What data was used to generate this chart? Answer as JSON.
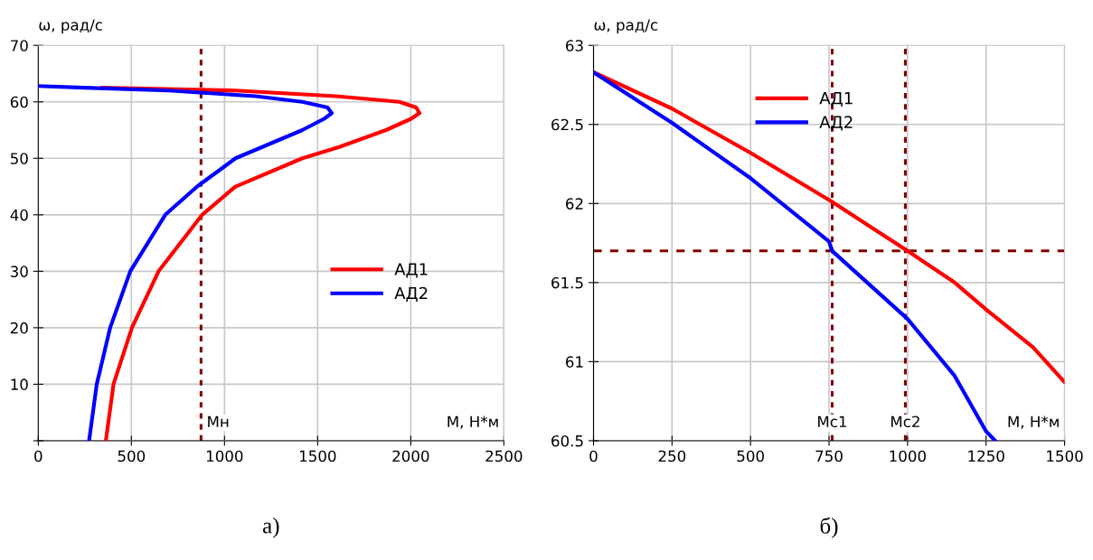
{
  "chart_data": [
    {
      "type": "line",
      "xlabel": "М, Н*м",
      "ylabel": "ω, рад/с",
      "xlim": [
        0,
        2500
      ],
      "ylim": [
        0,
        70
      ],
      "xticks": [
        0,
        500,
        1000,
        1500,
        2000,
        2500
      ],
      "yticks": [
        {
          "value": 0,
          "label": null
        },
        10,
        20,
        30,
        40,
        50,
        60,
        70
      ],
      "grid": true,
      "legend": "right",
      "line_style": "solid",
      "series": [
        {
          "name": "АД1",
          "color": "#ff0000",
          "x": [
            363,
            404,
            503,
            646,
            880,
            1059,
            1418,
            1616,
            1867,
            2002,
            2047,
            2029,
            1939,
            1598,
            1059,
            341
          ],
          "values": [
            0,
            10,
            20,
            30,
            40,
            45,
            50,
            52,
            55,
            57,
            58,
            59,
            60,
            61,
            62,
            62.5
          ]
        },
        {
          "name": "АД2",
          "color": "#0000ff",
          "x": [
            273,
            314,
            386,
            494,
            682,
            853,
            1059,
            1418,
            1535,
            1576,
            1553,
            1418,
            1167,
            700,
            251,
            0
          ],
          "values": [
            0,
            10,
            20,
            30,
            40,
            45,
            50,
            55,
            57,
            58,
            59,
            60,
            61,
            62,
            62.5,
            62.8
          ]
        }
      ],
      "ref_lines": [
        {
          "axis": "x",
          "value": 874,
          "label": "Мн",
          "color": "#800000",
          "line_style": "dotted"
        }
      ],
      "annotations": [
        "а)"
      ]
    },
    {
      "type": "line",
      "xlabel": "М, Н*м",
      "ylabel": "ω, рад/с",
      "xlim": [
        0,
        1500
      ],
      "ylim": [
        60.5,
        63
      ],
      "xticks": [
        0,
        250,
        500,
        750,
        1000,
        1250,
        1500
      ],
      "yticks": [
        60.5,
        61,
        61.5,
        62,
        62.5,
        63
      ],
      "grid": true,
      "legend": "top",
      "line_style": "solid",
      "series": [
        {
          "name": "АД1",
          "color": "#ff0000",
          "x": [
            0,
            250,
            500,
            760,
            1000,
            1150,
            1250,
            1400,
            1500
          ],
          "values": [
            62.83,
            62.6,
            62.32,
            62.01,
            61.7,
            61.5,
            61.33,
            61.09,
            60.87
          ]
        },
        {
          "name": "АД2",
          "color": "#0000ff",
          "x": [
            0,
            250,
            500,
            750,
            760,
            1000,
            1150,
            1250,
            1279
          ],
          "values": [
            62.83,
            62.51,
            62.16,
            61.76,
            61.7,
            61.27,
            60.91,
            60.56,
            60.5
          ]
        }
      ],
      "ref_lines": [
        {
          "axis": "x",
          "value": 760,
          "label": "Мс1",
          "color": "#800000",
          "line_style": "dotted"
        },
        {
          "axis": "x",
          "value": 993,
          "label": "Мс2",
          "color": "#800000",
          "line_style": "dotted"
        },
        {
          "axis": "y",
          "value": 61.7,
          "color": "#800000",
          "line_style": "dashed"
        }
      ],
      "annotations": [
        "б)"
      ]
    }
  ]
}
